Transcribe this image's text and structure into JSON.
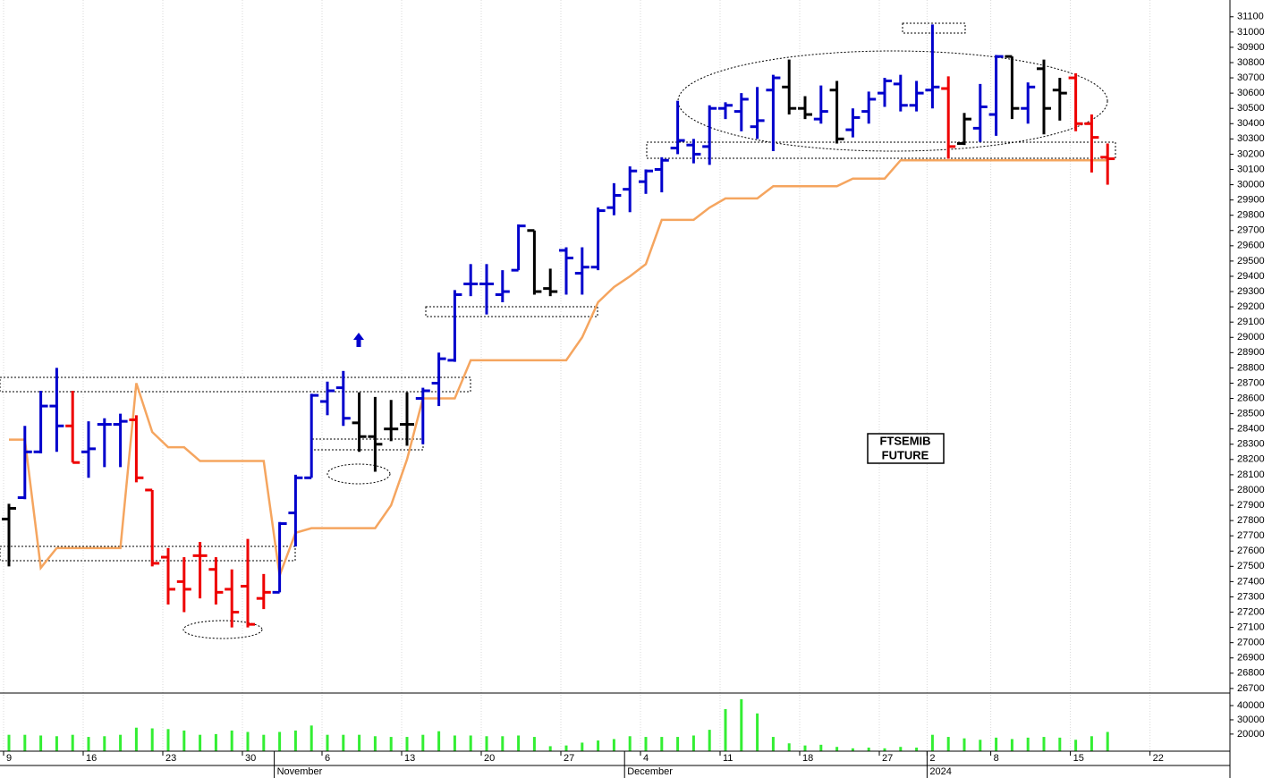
{
  "chart_data": {
    "type": "ohlc",
    "annotation": [
      "FTSEMIB",
      "FUTURE"
    ],
    "categories": [
      "9",
      null,
      null,
      null,
      null,
      "16",
      null,
      null,
      null,
      null,
      "23",
      null,
      null,
      null,
      null,
      "30",
      null,
      null,
      null,
      null,
      "6",
      null,
      null,
      null,
      null,
      "13",
      null,
      null,
      null,
      null,
      "20",
      null,
      null,
      null,
      null,
      "27",
      null,
      null,
      null,
      null,
      "4",
      null,
      null,
      null,
      null,
      "11",
      null,
      null,
      null,
      null,
      "18",
      null,
      null,
      null,
      null,
      "27",
      null,
      null,
      "2",
      null,
      null,
      null,
      "8",
      null,
      null,
      null,
      null,
      "15",
      null,
      null,
      null,
      null,
      "22"
    ],
    "months": [
      null,
      null,
      null,
      null,
      null,
      null,
      null,
      null,
      null,
      null,
      null,
      null,
      null,
      null,
      null,
      null,
      null,
      "November",
      null,
      null,
      null,
      null,
      null,
      null,
      null,
      null,
      null,
      null,
      null,
      null,
      null,
      null,
      null,
      null,
      null,
      null,
      null,
      null,
      null,
      "December",
      null,
      null,
      null,
      null,
      null,
      null,
      null,
      null,
      null,
      null,
      null,
      null,
      null,
      null,
      null,
      null,
      null,
      null,
      "2024",
      null,
      null,
      null,
      null,
      null,
      null,
      null,
      null,
      null,
      null,
      null,
      null,
      null,
      null
    ],
    "open": [
      27810,
      27950,
      28250,
      28550,
      28420,
      28250,
      28430,
      28430,
      28460,
      28000,
      27560,
      27400,
      27570,
      27480,
      27350,
      27370,
      27290,
      27330,
      27850,
      28080,
      28580,
      28670,
      28440,
      28350,
      28400,
      28430,
      28600,
      28700,
      28850,
      29350,
      29350,
      29280,
      29440,
      29700,
      29320,
      29570,
      29420,
      29460,
      29850,
      29970,
      30020,
      30100,
      30240,
      30260,
      30250,
      30500,
      30480,
      30380,
      30620,
      30640,
      30500,
      30430,
      30620,
      30360,
      30480,
      30600,
      30660,
      30520,
      30620,
      30630,
      30270,
      30370,
      30460,
      30840,
      30500,
      30760,
      30620,
      30700,
      30400,
      30180,
      null,
      null,
      null
    ],
    "high": [
      27910,
      28420,
      28650,
      28800,
      28650,
      28450,
      28470,
      28500,
      28490,
      28000,
      27620,
      27560,
      27660,
      27560,
      27480,
      27680,
      27450,
      27790,
      28100,
      28630,
      28710,
      28780,
      28640,
      28610,
      28590,
      28640,
      28670,
      28900,
      29310,
      29480,
      29480,
      29440,
      29740,
      29700,
      29450,
      29590,
      29590,
      29850,
      30010,
      30120,
      30100,
      30180,
      30550,
      30300,
      30520,
      30540,
      30600,
      30640,
      30720,
      30820,
      30580,
      30650,
      30680,
      30500,
      30610,
      30700,
      30720,
      30680,
      31050,
      30710,
      30470,
      30660,
      30850,
      30840,
      30670,
      30820,
      30700,
      30730,
      30460,
      30270,
      null,
      null,
      null
    ],
    "low": [
      27500,
      27940,
      28240,
      28250,
      28180,
      28080,
      28150,
      28150,
      28050,
      27500,
      27250,
      27200,
      27290,
      27250,
      27100,
      27100,
      27220,
      27330,
      27630,
      28080,
      28490,
      28420,
      28250,
      28120,
      28320,
      28290,
      28300,
      28550,
      28840,
      29270,
      29150,
      29230,
      29440,
      29280,
      29270,
      29280,
      29280,
      29440,
      29800,
      29820,
      29940,
      29950,
      30200,
      30140,
      30130,
      30430,
      30350,
      30300,
      30220,
      30460,
      30430,
      30400,
      30270,
      30310,
      30400,
      30510,
      30480,
      30480,
      30500,
      30170,
      30260,
      30280,
      30320,
      30430,
      30400,
      30330,
      30420,
      30350,
      30080,
      30000,
      null,
      null,
      null
    ],
    "close": [
      27880,
      28250,
      28550,
      28420,
      28180,
      28270,
      28430,
      28450,
      28080,
      27520,
      27350,
      27350,
      27570,
      27330,
      27200,
      27120,
      27330,
      27780,
      28080,
      28620,
      28650,
      28470,
      28350,
      28300,
      28400,
      28430,
      28650,
      28860,
      29280,
      29350,
      29350,
      29300,
      29730,
      29300,
      29300,
      29520,
      29460,
      29830,
      29930,
      30090,
      30090,
      30160,
      30290,
      30200,
      30500,
      30520,
      30560,
      30420,
      30700,
      30500,
      30460,
      30480,
      30300,
      30440,
      30560,
      30680,
      30520,
      30600,
      30640,
      30250,
      30430,
      30510,
      30840,
      30500,
      30640,
      30500,
      30600,
      30400,
      30310,
      30170,
      null,
      null,
      null
    ],
    "bar_colors": [
      "#000000",
      "#0000cc",
      "#0000cc",
      "#0000cc",
      "#ee0000",
      "#0000cc",
      "#0000cc",
      "#0000cc",
      "#ee0000",
      "#ee0000",
      "#ee0000",
      "#ee0000",
      "#ee0000",
      "#ee0000",
      "#ee0000",
      "#ee0000",
      "#ee0000",
      "#0000cc",
      "#0000cc",
      "#0000cc",
      "#0000cc",
      "#0000cc",
      "#000000",
      "#000000",
      "#000000",
      "#000000",
      "#0000cc",
      "#0000cc",
      "#0000cc",
      "#0000cc",
      "#0000cc",
      "#0000cc",
      "#0000cc",
      "#000000",
      "#000000",
      "#0000cc",
      "#0000cc",
      "#0000cc",
      "#0000cc",
      "#0000cc",
      "#0000cc",
      "#0000cc",
      "#0000cc",
      "#0000cc",
      "#0000cc",
      "#0000cc",
      "#0000cc",
      "#0000cc",
      "#0000cc",
      "#000000",
      "#000000",
      "#0000cc",
      "#000000",
      "#0000cc",
      "#0000cc",
      "#0000cc",
      "#0000cc",
      "#0000cc",
      "#0000cc",
      "#ee0000",
      "#000000",
      "#0000cc",
      "#0000cc",
      "#000000",
      "#0000cc",
      "#000000",
      "#000000",
      "#ee0000",
      "#ee0000",
      "#ee0000",
      null,
      null,
      null
    ],
    "line": {
      "color": "#f5a55f",
      "values": [
        28330,
        28330,
        27490,
        27620,
        27620,
        27620,
        27620,
        27620,
        28700,
        28380,
        28280,
        28280,
        28190,
        28190,
        28190,
        28190,
        28190,
        27440,
        27720,
        27750,
        27750,
        27750,
        27750,
        27750,
        27900,
        28200,
        28600,
        28600,
        28600,
        28850,
        28850,
        28850,
        28850,
        28850,
        28850,
        28850,
        29000,
        29230,
        29330,
        29400,
        29480,
        29770,
        29770,
        29770,
        29850,
        29910,
        29910,
        29910,
        29990,
        29990,
        29990,
        29990,
        29990,
        30040,
        30040,
        30040,
        30160,
        30160,
        30160,
        30160,
        30160,
        30160,
        30160,
        30160,
        30160,
        30160,
        30160,
        30160,
        30160,
        30160,
        null,
        null,
        null
      ]
    },
    "volume": {
      "color": "#33ee33",
      "values": [
        19500,
        19500,
        19000,
        18500,
        19500,
        18000,
        18500,
        19500,
        24500,
        24000,
        23500,
        22500,
        19500,
        20000,
        22500,
        21500,
        19500,
        21500,
        22500,
        26000,
        19500,
        19500,
        19500,
        18500,
        18000,
        18000,
        19500,
        22000,
        19000,
        19000,
        18500,
        18500,
        19000,
        18000,
        11500,
        12000,
        14000,
        15500,
        16500,
        18500,
        18000,
        18000,
        18000,
        19000,
        23000,
        37500,
        44500,
        34500,
        18000,
        13500,
        12000,
        12500,
        11000,
        10000,
        10500,
        10000,
        11000,
        10500,
        19500,
        18000,
        17000,
        16000,
        17500,
        16500,
        17500,
        18000,
        17500,
        16000,
        18500,
        21500,
        null,
        null,
        null
      ],
      "ylim": [
        8000,
        48800
      ],
      "yticks": [
        20000,
        30000,
        40000
      ]
    },
    "ylim": [
      26670,
      31210
    ],
    "yticks": [
      26700,
      26800,
      26900,
      27000,
      27100,
      27200,
      27300,
      27400,
      27500,
      27600,
      27700,
      27800,
      27900,
      28000,
      28100,
      28200,
      28300,
      28400,
      28500,
      28600,
      28700,
      28800,
      28900,
      29000,
      29100,
      29200,
      29300,
      29400,
      29500,
      29600,
      29700,
      29800,
      29900,
      30000,
      30100,
      30200,
      30300,
      30400,
      30500,
      30600,
      30700,
      30800,
      30900,
      31000,
      31100
    ],
    "grid": true
  }
}
